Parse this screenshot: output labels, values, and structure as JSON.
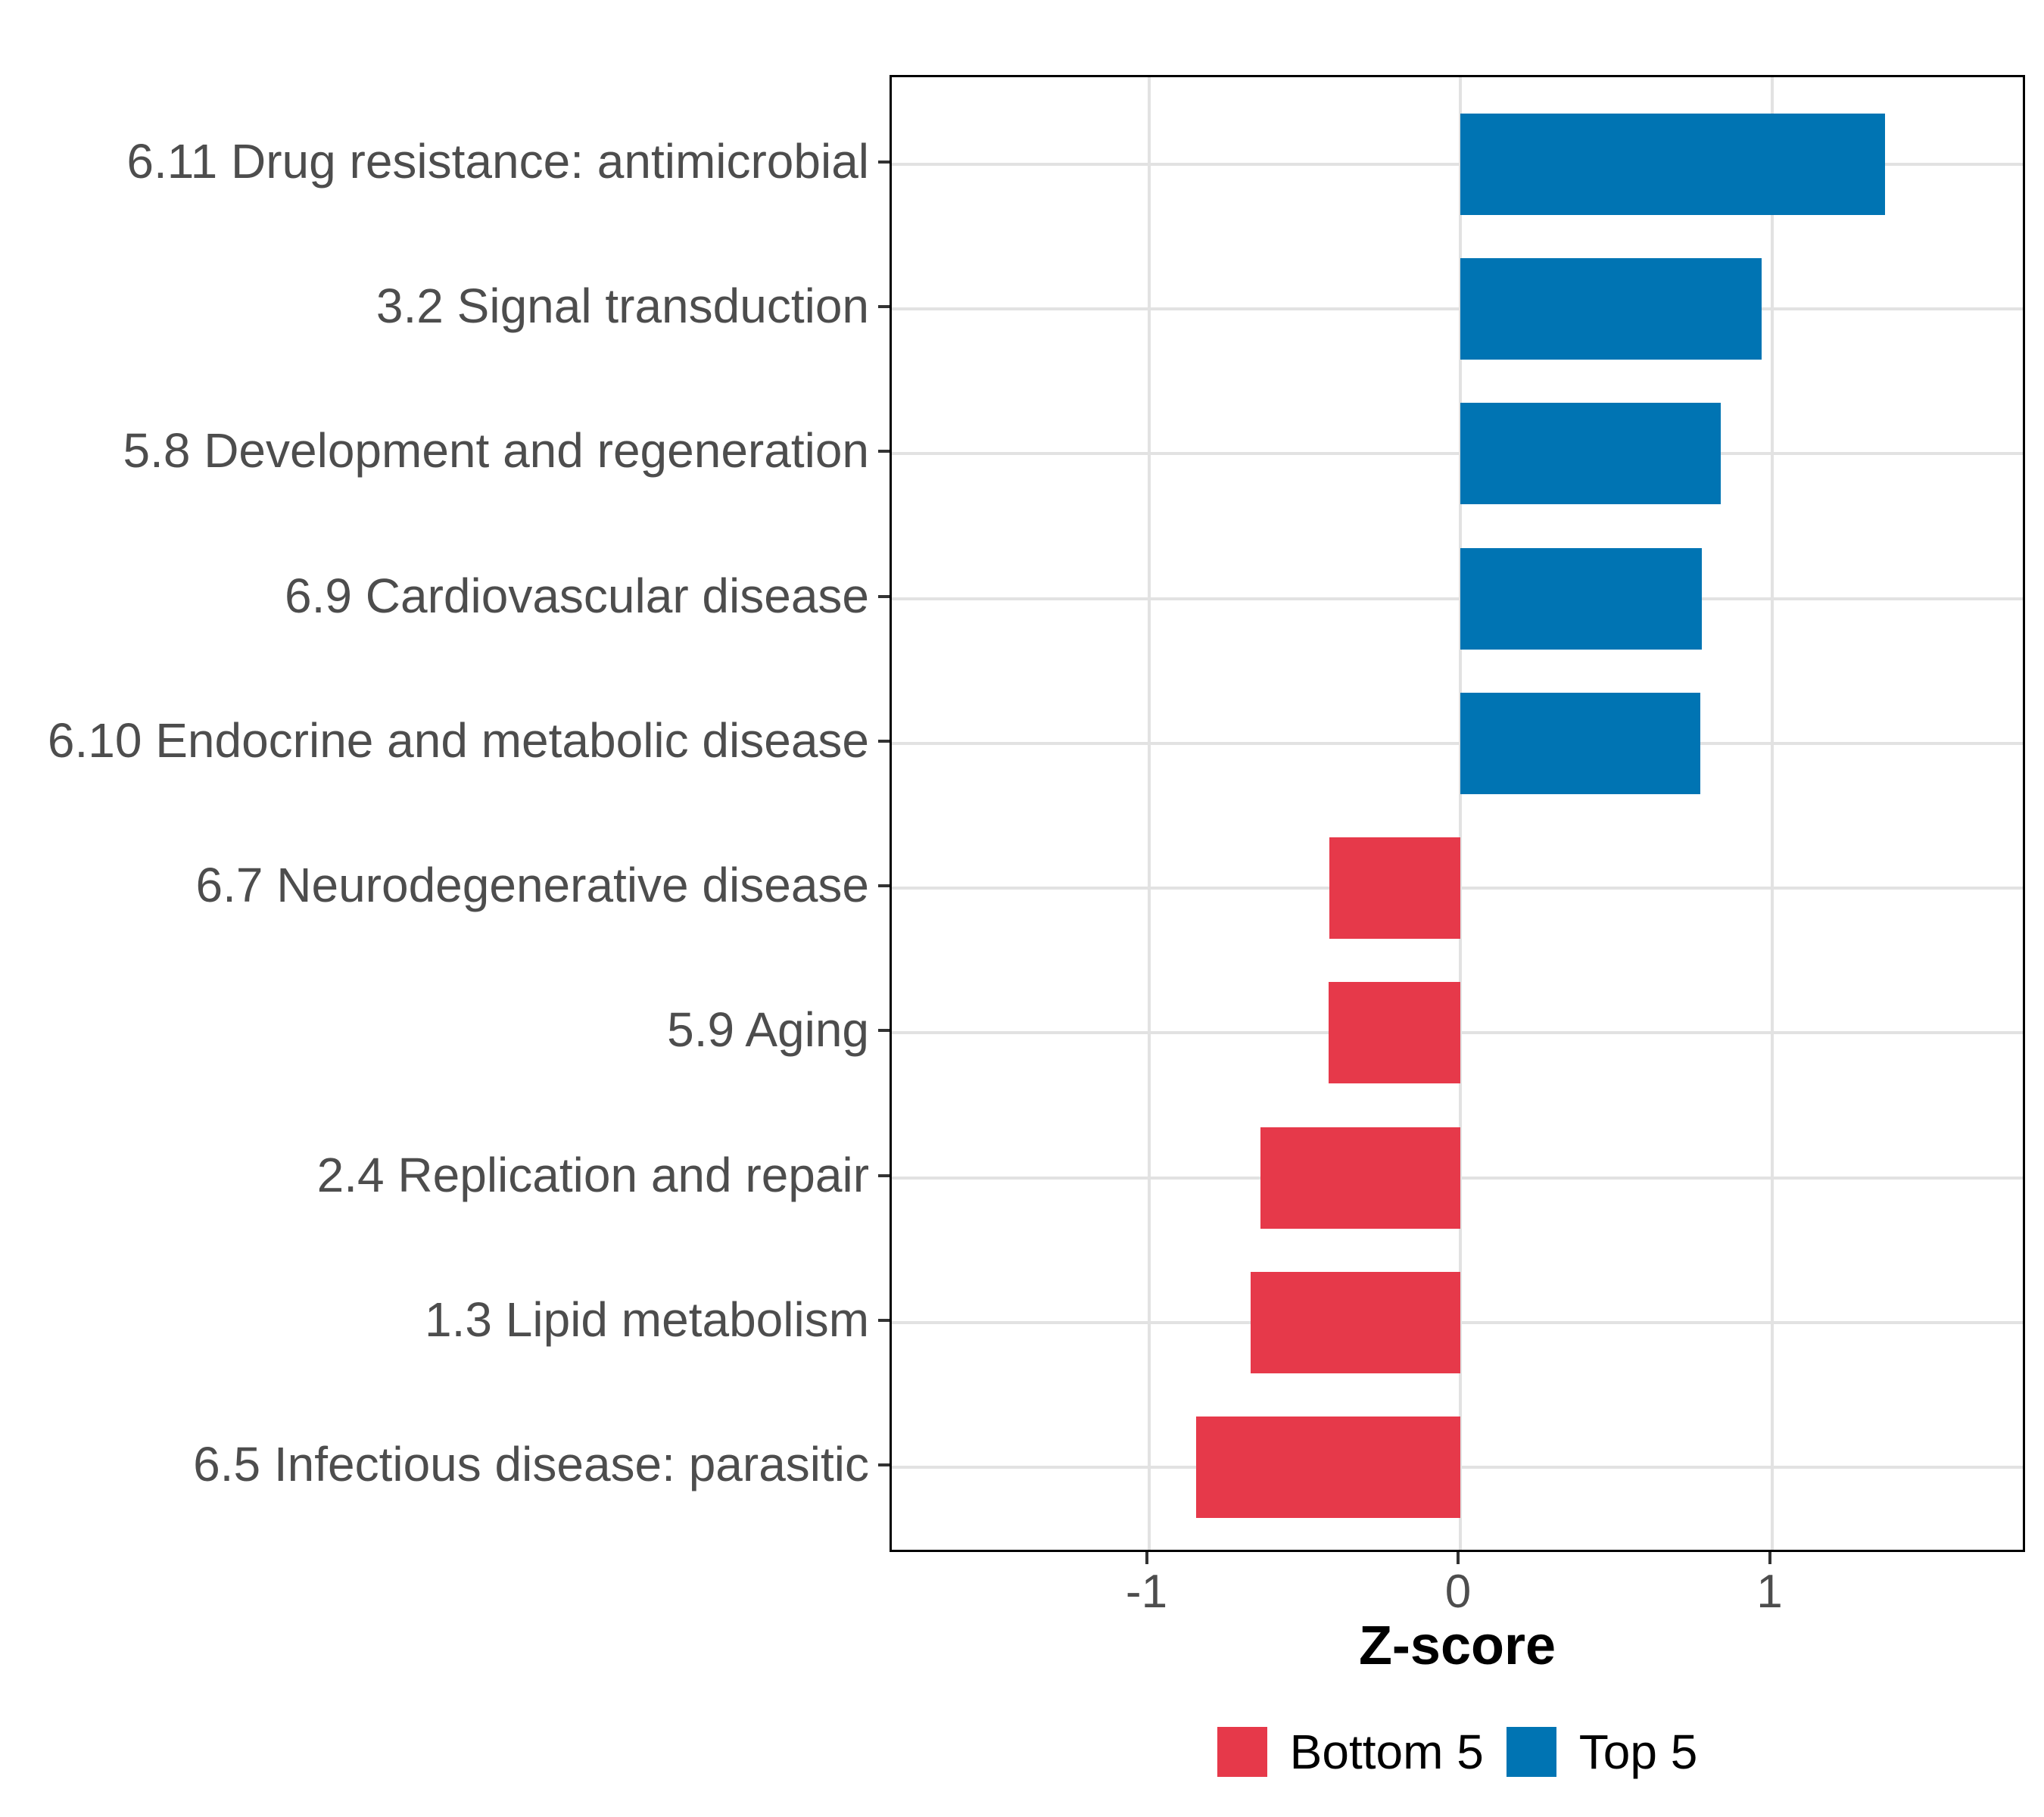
{
  "figure": {
    "background": "#ffffff"
  },
  "chart_data": {
    "type": "bar",
    "orientation": "horizontal",
    "title": "",
    "xlabel": "Z-score",
    "ylabel": "",
    "categories": [
      "6.11 Drug resistance: antimicrobial",
      "3.2 Signal transduction",
      "5.8 Development and regeneration",
      "6.9 Cardiovascular disease",
      "6.10 Endocrine and metabolic disease",
      "6.7 Neurodegenerative disease",
      "5.9 Aging",
      "2.4 Replication and repair",
      "1.3 Lipid metabolism",
      "6.5 Infectious disease: parasitic"
    ],
    "values": [
      1.363,
      0.968,
      0.835,
      0.776,
      0.771,
      -0.42,
      -0.424,
      -0.642,
      -0.672,
      -0.848
    ],
    "groups": [
      "Top 5",
      "Top 5",
      "Top 5",
      "Top 5",
      "Top 5",
      "Bottom 5",
      "Bottom 5",
      "Bottom 5",
      "Bottom 5",
      "Bottom 5"
    ],
    "series": [
      {
        "name": "Bottom 5",
        "color": "#E6394A"
      },
      {
        "name": "Top 5",
        "color": "#0074B3"
      }
    ],
    "legend": [
      {
        "label": "Bottom 5",
        "color": "#E6394A"
      },
      {
        "label": "Top 5",
        "color": "#0074B3"
      }
    ],
    "legend_position": "bottom",
    "xticks": [
      "-1",
      "0",
      "1"
    ],
    "xtick_values": [
      -1,
      0,
      1
    ],
    "xlim": [
      -1.825,
      1.82
    ],
    "bar_width_fraction": 0.7,
    "band_expand": 0.6,
    "grid": "major",
    "grid_color": "#E2E2E2",
    "border_color": "#000000",
    "tick_color": "#333333",
    "label_color": "#4D4D4D"
  }
}
